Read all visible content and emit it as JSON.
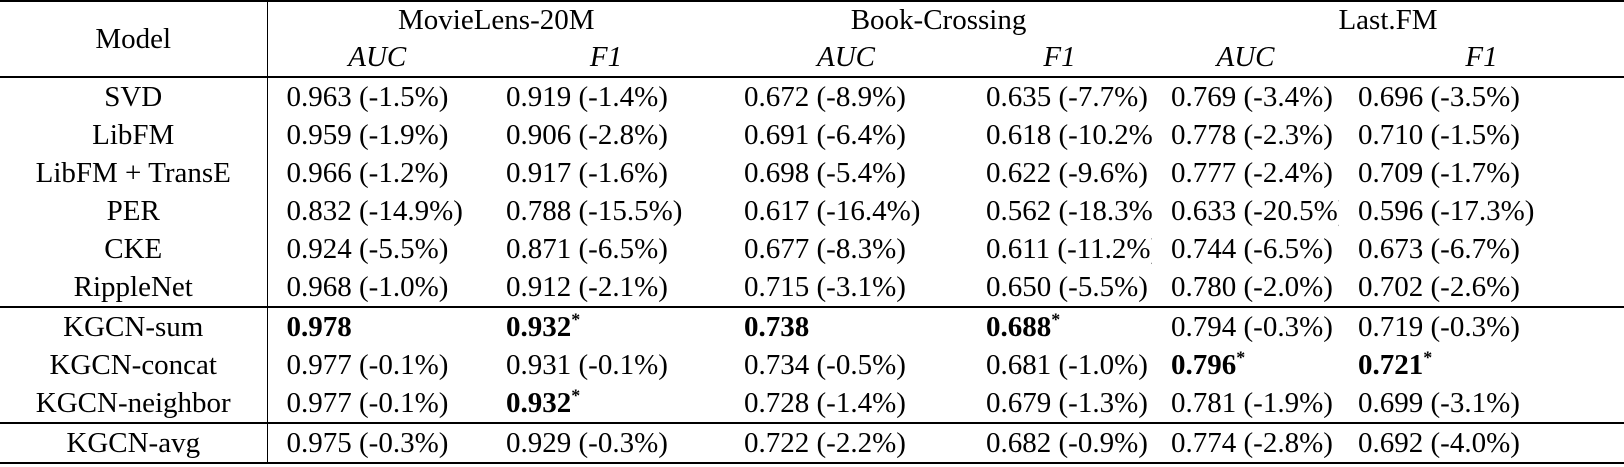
{
  "table": {
    "star_symbol": "*",
    "header": {
      "model": "Model",
      "groups": [
        {
          "label": "MovieLens-20M",
          "metrics": [
            "AUC",
            "F1"
          ]
        },
        {
          "label": "Book-Crossing",
          "metrics": [
            "AUC",
            "F1"
          ]
        },
        {
          "label": "Last.FM",
          "metrics": [
            "AUC",
            "F1"
          ]
        }
      ]
    },
    "sections": [
      {
        "rows": [
          {
            "model": "SVD",
            "cells": [
              {
                "text": "0.963 (-1.5%)"
              },
              {
                "text": "0.919 (-1.4%)"
              },
              {
                "text": "0.672 (-8.9%)"
              },
              {
                "text": "0.635 (-7.7%)"
              },
              {
                "text": "0.769 (-3.4%)"
              },
              {
                "text": "0.696 (-3.5%)"
              }
            ]
          },
          {
            "model": "LibFM",
            "cells": [
              {
                "text": "0.959 (-1.9%)"
              },
              {
                "text": "0.906 (-2.8%)"
              },
              {
                "text": "0.691 (-6.4%)"
              },
              {
                "text": "0.618 (-10.2%)"
              },
              {
                "text": "0.778 (-2.3%)"
              },
              {
                "text": "0.710 (-1.5%)"
              }
            ]
          },
          {
            "model": "LibFM + TransE",
            "cells": [
              {
                "text": "0.966 (-1.2%)"
              },
              {
                "text": "0.917 (-1.6%)"
              },
              {
                "text": "0.698 (-5.4%)"
              },
              {
                "text": "0.622 (-9.6%)"
              },
              {
                "text": "0.777 (-2.4%)"
              },
              {
                "text": "0.709 (-1.7%)"
              }
            ]
          },
          {
            "model": "PER",
            "cells": [
              {
                "text": "0.832 (-14.9%)"
              },
              {
                "text": "0.788 (-15.5%)"
              },
              {
                "text": "0.617 (-16.4%)"
              },
              {
                "text": "0.562 (-18.3%)"
              },
              {
                "text": "0.633 (-20.5%)"
              },
              {
                "text": "0.596 (-17.3%)"
              }
            ]
          },
          {
            "model": "CKE",
            "cells": [
              {
                "text": "0.924 (-5.5%)"
              },
              {
                "text": "0.871 (-6.5%)"
              },
              {
                "text": "0.677 (-8.3%)"
              },
              {
                "text": "0.611 (-11.2%)"
              },
              {
                "text": "0.744 (-6.5%)"
              },
              {
                "text": "0.673 (-6.7%)"
              }
            ]
          },
          {
            "model": "RippleNet",
            "cells": [
              {
                "text": "0.968 (-1.0%)"
              },
              {
                "text": "0.912 (-2.1%)"
              },
              {
                "text": "0.715 (-3.1%)"
              },
              {
                "text": "0.650 (-5.5%)"
              },
              {
                "text": "0.780 (-2.0%)"
              },
              {
                "text": "0.702 (-2.6%)"
              }
            ]
          }
        ]
      },
      {
        "rows": [
          {
            "model": "KGCN-sum",
            "cells": [
              {
                "text": "0.978",
                "bold": true
              },
              {
                "text": "0.932",
                "bold": true,
                "star": true
              },
              {
                "text": "0.738",
                "bold": true
              },
              {
                "text": "0.688",
                "bold": true,
                "star": true
              },
              {
                "text": "0.794 (-0.3%)"
              },
              {
                "text": "0.719 (-0.3%)"
              }
            ]
          },
          {
            "model": "KGCN-concat",
            "cells": [
              {
                "text": "0.977 (-0.1%)"
              },
              {
                "text": "0.931 (-0.1%)"
              },
              {
                "text": "0.734 (-0.5%)"
              },
              {
                "text": "0.681 (-1.0%)"
              },
              {
                "text": "0.796",
                "bold": true,
                "star": true
              },
              {
                "text": "0.721",
                "bold": true,
                "star": true
              }
            ]
          },
          {
            "model": "KGCN-neighbor",
            "cells": [
              {
                "text": "0.977 (-0.1%)"
              },
              {
                "text": "0.932",
                "bold": true,
                "star": true
              },
              {
                "text": "0.728 (-1.4%)"
              },
              {
                "text": "0.679 (-1.3%)"
              },
              {
                "text": "0.781 (-1.9%)"
              },
              {
                "text": "0.699 (-3.1%)"
              }
            ]
          }
        ]
      },
      {
        "rows": [
          {
            "model": "KGCN-avg",
            "cells": [
              {
                "text": "0.975 (-0.3%)"
              },
              {
                "text": "0.929 (-0.3%)"
              },
              {
                "text": "0.722 (-2.2%)"
              },
              {
                "text": "0.682 (-0.9%)"
              },
              {
                "text": "0.774 (-2.8%)"
              },
              {
                "text": "0.692 (-4.0%)"
              }
            ]
          }
        ]
      }
    ]
  }
}
